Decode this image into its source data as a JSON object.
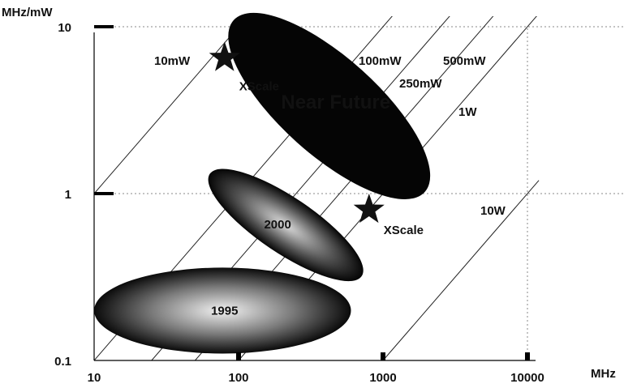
{
  "chart_data": {
    "type": "scatter",
    "xlabel": "MHz",
    "ylabel": "MHz/mW",
    "x_scale": "log",
    "y_scale": "log",
    "xlim": [
      10,
      10000
    ],
    "ylim": [
      0.1,
      10
    ],
    "x_ticks": [
      10,
      100,
      1000,
      10000
    ],
    "x_tick_labels": [
      "10",
      "100",
      "1000",
      "10000"
    ],
    "y_ticks": [
      0.1,
      1,
      10
    ],
    "y_tick_labels": [
      "0.1",
      "1",
      "10"
    ],
    "grid": "dotted at MHz/mW 1 and 10 and at 10000 MHz",
    "power_lines": [
      {
        "label": "10mW",
        "power_mW": 10
      },
      {
        "label": "100mW",
        "power_mW": 100
      },
      {
        "label": "250mW",
        "power_mW": 250
      },
      {
        "label": "500mW",
        "power_mW": 500
      },
      {
        "label": "1W",
        "power_mW": 1000
      },
      {
        "label": "10W",
        "power_mW": 10000
      }
    ],
    "regions": [
      {
        "label": "1995",
        "mhz_range": [
          10,
          600
        ],
        "mhz_per_mw_range": [
          0.11,
          0.36
        ]
      },
      {
        "label": "2000",
        "mhz_range": [
          50,
          900
        ],
        "mhz_per_mw_range": [
          0.3,
          1.4
        ]
      },
      {
        "label": "Near Future",
        "mhz_range": [
          90,
          2000
        ],
        "mhz_per_mw_range": [
          0.7,
          16
        ]
      }
    ],
    "points": [
      {
        "label": "XScale",
        "mhz": 80,
        "mhz_per_mw": 6.5
      },
      {
        "label": "XScale",
        "mhz": 800,
        "mhz_per_mw": 0.8
      }
    ]
  }
}
